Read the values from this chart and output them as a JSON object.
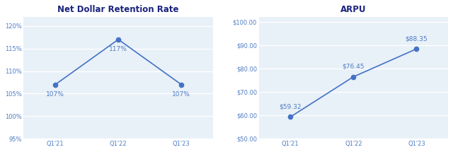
{
  "left_title": "Net Dollar Retention Rate",
  "right_title": "ARPU",
  "categories": [
    "Q1'21",
    "Q1'22",
    "Q1'23"
  ],
  "ndr_values": [
    107,
    117,
    107
  ],
  "ndr_labels": [
    "107%",
    "117%",
    "107%"
  ],
  "arpu_values": [
    59.32,
    76.45,
    88.35
  ],
  "arpu_labels": [
    "$59.32",
    "$76.45",
    "$88.35"
  ],
  "line_color": "#4472C4",
  "marker_color": "#4472C4",
  "label_color": "#4f7cc4",
  "title_color": "#1a237e",
  "bg_color": "#e8f0f8",
  "fig_bg": "#ffffff",
  "ndr_ylim": [
    95,
    122
  ],
  "ndr_yticks": [
    95,
    100,
    105,
    110,
    115,
    120
  ],
  "arpu_ylim": [
    50,
    102
  ],
  "arpu_yticks": [
    50,
    60,
    70,
    80,
    90,
    100
  ],
  "title_fontsize": 8.5,
  "tick_fontsize": 6.0,
  "label_fontsize": 6.5,
  "marker_size": 4.5,
  "line_width": 1.2
}
